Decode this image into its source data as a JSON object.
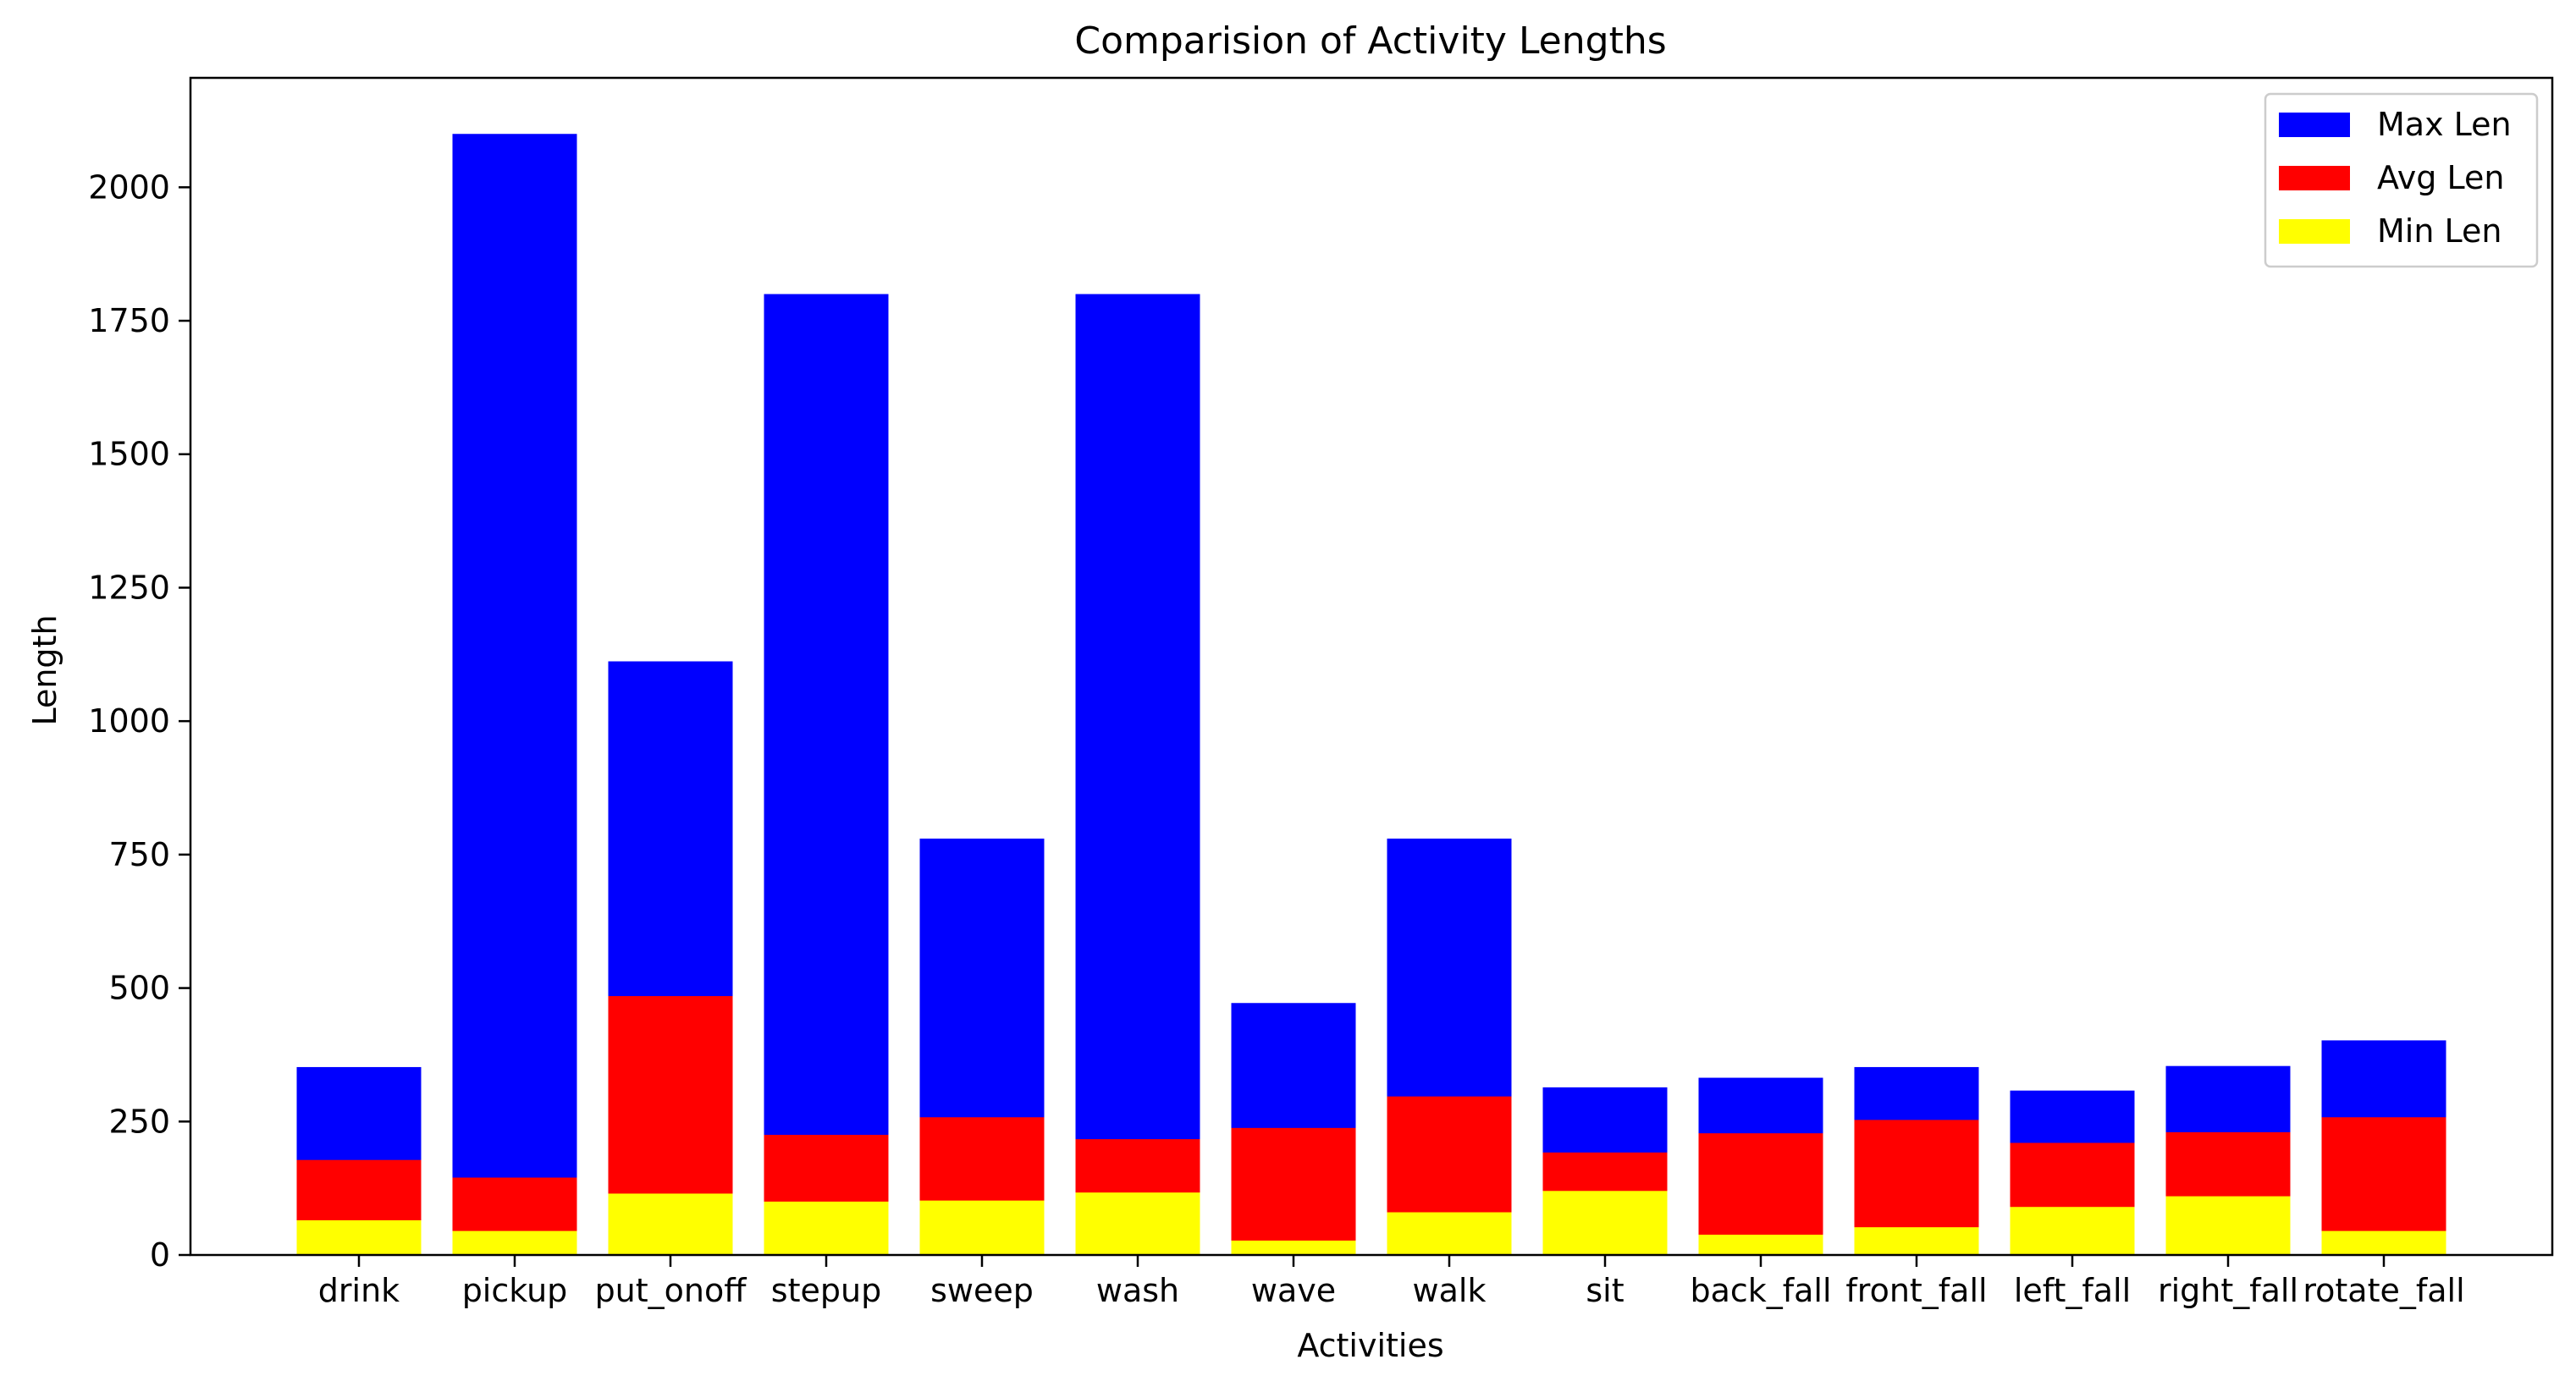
{
  "chart_data": {
    "type": "bar",
    "stacked": false,
    "title": "Comparision of Activity Lengths",
    "xlabel": "Activities",
    "ylabel": "Length",
    "ylim": [
      0,
      2200
    ],
    "yticks": [
      0,
      250,
      500,
      750,
      1000,
      1250,
      1500,
      1750,
      2000
    ],
    "grid": false,
    "legend_position": "top-right",
    "categories": [
      "drink",
      "pickup",
      "put_onoff",
      "stepup",
      "sweep",
      "wash",
      "wave",
      "walk",
      "sit",
      "back_fall",
      "front_fall",
      "left_fall",
      "right_fall",
      "rotate_fall"
    ],
    "series": [
      {
        "name": "Max Len",
        "color": "#0000ff",
        "values": [
          352,
          2100,
          1112,
          1800,
          780,
          1800,
          472,
          780,
          314,
          332,
          352,
          308,
          354,
          402
        ]
      },
      {
        "name": "Avg Len",
        "color": "#ff0000",
        "values": [
          178,
          145,
          485,
          225,
          258,
          217,
          238,
          297,
          192,
          228,
          253,
          210,
          230,
          258
        ]
      },
      {
        "name": "Min Len",
        "color": "#ffff00",
        "values": [
          65,
          45,
          115,
          100,
          102,
          117,
          27,
          80,
          120,
          38,
          52,
          90,
          110,
          45
        ]
      }
    ]
  }
}
